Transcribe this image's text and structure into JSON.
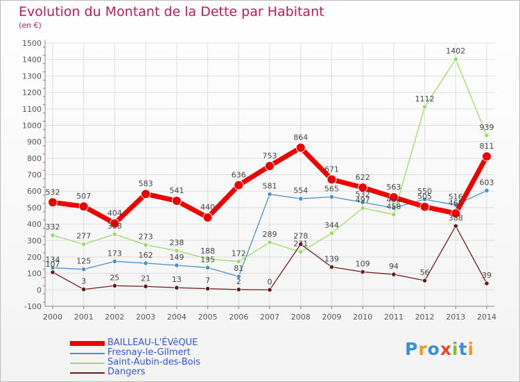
{
  "title": "Evolution du Montant de la Dette par Habitant",
  "unit": "(en €)",
  "logo": {
    "text": "Proxiti",
    "colors": [
      "#3b8fd6",
      "#f39a1e",
      "#3b8fd6",
      "#e8452c",
      "#7cbf2e",
      "#3b8fd6",
      "#f39a1e"
    ]
  },
  "colors": {
    "title": "#c0175d",
    "legend_text": "#3355dd",
    "grid": "#dddddd",
    "axis_text": "#555555",
    "tick_red": "#e84c4c"
  },
  "chart_data": {
    "type": "line",
    "title": "Evolution du Montant de la Dette par Habitant",
    "ylabel": "(en €)",
    "x": [
      2000,
      2001,
      2002,
      2003,
      2004,
      2005,
      2006,
      2007,
      2008,
      2009,
      2010,
      2011,
      2012,
      2013,
      2014
    ],
    "ylim": [
      -100,
      1500
    ],
    "yticks": [
      -100,
      0,
      100,
      200,
      300,
      400,
      500,
      600,
      700,
      800,
      900,
      1000,
      1100,
      1200,
      1300,
      1400,
      1500
    ],
    "grid": true,
    "legend_position": "bottom-left",
    "series": [
      {
        "name": "BAILLEAU-L'ÉVêQUE",
        "color": "#ee0000",
        "width": 7,
        "values": [
          532,
          507,
          404,
          583,
          541,
          440,
          636,
          753,
          864,
          671,
          622,
          563,
          505,
          465,
          811
        ],
        "labels": [
          "532",
          "507",
          "404",
          "583",
          "541",
          "440",
          "636",
          "753",
          "864",
          "671",
          "622",
          "563",
          "505",
          "465",
          "811"
        ]
      },
      {
        "name": "Fresnay-le-Gilmert",
        "color": "#4f8fc9",
        "width": 1.3,
        "values": [
          134,
          125,
          173,
          162,
          149,
          135,
          81,
          581,
          554,
          565,
          532,
          498,
          550,
          516,
          603
        ],
        "labels": [
          "134",
          "125",
          "173",
          "162",
          "149",
          "135",
          "81",
          "581",
          "554",
          "565",
          "532",
          "498",
          "550",
          "516",
          "603"
        ]
      },
      {
        "name": "Saint-Aubin-des-Bois",
        "color": "#99dd66",
        "width": 1.3,
        "values": [
          332,
          277,
          338,
          273,
          238,
          188,
          172,
          289,
          231,
          344,
          497,
          458,
          1112,
          1402,
          939
        ],
        "labels": [
          "332",
          "277",
          "338",
          "273",
          "238",
          "188",
          "172",
          "289",
          "231",
          "344",
          "497",
          "458",
          "1112",
          "1402",
          "939"
        ]
      },
      {
        "name": "Dangers",
        "color": "#6b1a1a",
        "width": 1.3,
        "values": [
          107,
          3,
          25,
          21,
          13,
          7,
          2,
          0,
          278,
          139,
          109,
          94,
          56,
          388,
          39
        ],
        "labels": [
          "107",
          "3",
          "25",
          "21",
          "13",
          "7",
          "2",
          "0",
          "278",
          "139",
          "109",
          "94",
          "56",
          "388",
          "39"
        ]
      }
    ]
  }
}
